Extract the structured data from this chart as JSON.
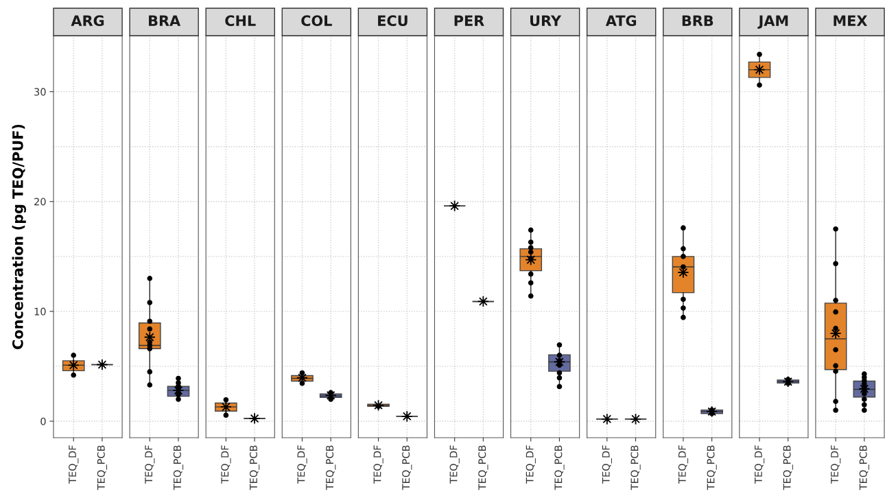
{
  "chart_data": [
    {
      "type": "box",
      "title": "ARG",
      "ylabel": "Concentration (pg TEQ/PUF)",
      "categories": [
        "TEQ_DF",
        "TEQ_PCB"
      ],
      "ylim": [
        -1.5,
        35.1
      ],
      "yticks": [
        0,
        10,
        20,
        30
      ],
      "grid": true,
      "series": [
        {
          "type": "box",
          "colors": [
            "#e3832a",
            "#333333"
          ],
          "boxes": [
            {
              "low": 4.2,
              "q1": 4.6,
              "median": 5.1,
              "q3": 5.5,
              "high": 6.0,
              "mean": 5.1
            },
            {
              "low": 5.15,
              "q1": 5.15,
              "median": 5.15,
              "q3": 5.15,
              "high": 5.15,
              "mean": 5.15
            }
          ]
        },
        {
          "type": "scatter",
          "marker": "circle",
          "color": "#000000",
          "x": [
            "TEQ_DF",
            "TEQ_DF"
          ],
          "values": [
            6.0,
            4.2
          ]
        }
      ]
    },
    {
      "type": "box",
      "title": "BRA",
      "categories": [
        "TEQ_DF",
        "TEQ_PCB"
      ],
      "ylim": [
        -1.5,
        35.1
      ],
      "yticks": [
        0,
        10,
        20,
        30
      ],
      "tick_labels": "x",
      "grid": true,
      "series": [
        {
          "type": "box",
          "colors": [
            "#e3832a",
            "#636b9e"
          ],
          "boxes": [
            {
              "low": 3.3,
              "q1": 6.6,
              "median": 6.9,
              "q3": 8.95,
              "high": 13.0,
              "mean": 7.65
            },
            {
              "low": 2.0,
              "q1": 2.27,
              "median": 2.8,
              "q3": 3.17,
              "high": 3.9,
              "mean": 2.8
            }
          ]
        },
        {
          "type": "scatter",
          "marker": "circle",
          "color": "#000000",
          "x": [
            "TEQ_DF",
            "TEQ_DF",
            "TEQ_DF",
            "TEQ_DF",
            "TEQ_DF",
            "TEQ_DF",
            "TEQ_DF",
            "TEQ_DF",
            "TEQ_DF",
            "TEQ_PCB",
            "TEQ_PCB",
            "TEQ_PCB",
            "TEQ_PCB",
            "TEQ_PCB",
            "TEQ_PCB",
            "TEQ_PCB"
          ],
          "values": [
            13.0,
            10.8,
            9.1,
            8.4,
            7.2,
            6.9,
            6.6,
            4.5,
            3.3,
            3.9,
            3.5,
            3.2,
            3.0,
            2.6,
            2.4,
            2.0
          ]
        }
      ]
    },
    {
      "type": "box",
      "title": "CHL",
      "categories": [
        "TEQ_DF",
        "TEQ_PCB"
      ],
      "ylim": [
        -1.5,
        35.1
      ],
      "yticks": [
        0,
        10,
        20,
        30
      ],
      "tick_labels": "x",
      "grid": true,
      "series": [
        {
          "type": "box",
          "colors": [
            "#e3832a",
            "#333333"
          ],
          "boxes": [
            {
              "low": 0.55,
              "q1": 0.92,
              "median": 1.3,
              "q3": 1.65,
              "high": 1.95,
              "mean": 1.3
            },
            {
              "low": 0.25,
              "q1": 0.25,
              "median": 0.25,
              "q3": 0.25,
              "high": 0.25,
              "mean": 0.25
            }
          ]
        },
        {
          "type": "scatter",
          "marker": "circle",
          "color": "#000000",
          "x": [
            "TEQ_DF",
            "TEQ_DF"
          ],
          "values": [
            1.95,
            0.55
          ]
        }
      ]
    },
    {
      "type": "box",
      "title": "COL",
      "categories": [
        "TEQ_DF",
        "TEQ_PCB"
      ],
      "ylim": [
        -1.5,
        35.1
      ],
      "yticks": [
        0,
        10,
        20,
        30
      ],
      "tick_labels": "x",
      "grid": true,
      "series": [
        {
          "type": "box",
          "colors": [
            "#e3832a",
            "#636b9e"
          ],
          "boxes": [
            {
              "low": 3.45,
              "q1": 3.65,
              "median": 3.9,
              "q3": 4.15,
              "high": 4.4,
              "mean": 3.95
            },
            {
              "low": 2.0,
              "q1": 2.17,
              "median": 2.3,
              "q3": 2.48,
              "high": 2.6,
              "mean": 2.35
            }
          ]
        },
        {
          "type": "scatter",
          "marker": "circle",
          "color": "#000000",
          "x": [
            "TEQ_DF",
            "TEQ_DF",
            "TEQ_PCB",
            "TEQ_PCB"
          ],
          "values": [
            4.4,
            3.45,
            2.6,
            2.0
          ]
        }
      ]
    },
    {
      "type": "box",
      "title": "ECU",
      "categories": [
        "TEQ_DF",
        "TEQ_PCB"
      ],
      "ylim": [
        -1.5,
        35.1
      ],
      "yticks": [
        0,
        10,
        20,
        30
      ],
      "tick_labels": "x",
      "grid": true,
      "series": [
        {
          "type": "box",
          "colors": [
            "#e3832a",
            "#333333"
          ],
          "boxes": [
            {
              "low": 1.35,
              "q1": 1.35,
              "median": 1.45,
              "q3": 1.55,
              "high": 1.55,
              "mean": 1.45
            },
            {
              "low": 0.45,
              "q1": 0.45,
              "median": 0.45,
              "q3": 0.45,
              "high": 0.45,
              "mean": 0.45
            }
          ]
        },
        {
          "type": "scatter",
          "marker": "circle",
          "color": "#000000",
          "x": [
            "TEQ_DF"
          ],
          "values": [
            1.35
          ]
        }
      ]
    },
    {
      "type": "box",
      "title": "PER",
      "categories": [
        "TEQ_DF",
        "TEQ_PCB"
      ],
      "ylim": [
        -1.5,
        35.1
      ],
      "yticks": [
        0,
        10,
        20,
        30
      ],
      "tick_labels": "x",
      "grid": true,
      "series": [
        {
          "type": "box",
          "colors": [
            "#333333",
            "#333333"
          ],
          "boxes": [
            {
              "low": 19.6,
              "q1": 19.6,
              "median": 19.6,
              "q3": 19.6,
              "high": 19.6,
              "mean": 19.6
            },
            {
              "low": 10.9,
              "q1": 10.9,
              "median": 10.9,
              "q3": 10.9,
              "high": 10.9,
              "mean": 10.9
            }
          ]
        }
      ]
    },
    {
      "type": "box",
      "title": "URY",
      "categories": [
        "TEQ_DF",
        "TEQ_PCB"
      ],
      "ylim": [
        -1.5,
        35.1
      ],
      "yticks": [
        0,
        10,
        20,
        30
      ],
      "tick_labels": "x",
      "grid": true,
      "series": [
        {
          "type": "box",
          "colors": [
            "#e3832a",
            "#636b9e"
          ],
          "boxes": [
            {
              "low": 11.4,
              "q1": 13.7,
              "median": 15.0,
              "q3": 15.7,
              "high": 17.4,
              "mean": 14.7
            },
            {
              "low": 3.15,
              "q1": 4.55,
              "median": 5.4,
              "q3": 6.05,
              "high": 6.95,
              "mean": 5.4
            }
          ]
        },
        {
          "type": "scatter",
          "marker": "circle",
          "color": "#000000",
          "x": [
            "TEQ_DF",
            "TEQ_DF",
            "TEQ_DF",
            "TEQ_DF",
            "TEQ_DF",
            "TEQ_DF",
            "TEQ_DF",
            "TEQ_DF",
            "TEQ_PCB",
            "TEQ_PCB",
            "TEQ_PCB",
            "TEQ_PCB",
            "TEQ_PCB",
            "TEQ_PCB",
            "TEQ_PCB"
          ],
          "values": [
            17.4,
            16.3,
            15.8,
            15.4,
            14.8,
            13.4,
            12.6,
            11.4,
            6.95,
            6.0,
            5.5,
            5.1,
            4.4,
            3.95,
            3.15
          ]
        }
      ]
    },
    {
      "type": "box",
      "title": "ATG",
      "categories": [
        "TEQ_DF",
        "TEQ_PCB"
      ],
      "ylim": [
        -1.5,
        35.1
      ],
      "yticks": [
        0,
        10,
        20,
        30
      ],
      "tick_labels": "x",
      "grid": true,
      "series": [
        {
          "type": "box",
          "colors": [
            "#333333",
            "#333333"
          ],
          "boxes": [
            {
              "low": 0.2,
              "q1": 0.2,
              "median": 0.2,
              "q3": 0.2,
              "high": 0.2,
              "mean": 0.2
            },
            {
              "low": 0.2,
              "q1": 0.2,
              "median": 0.2,
              "q3": 0.2,
              "high": 0.2,
              "mean": 0.2
            }
          ]
        }
      ]
    },
    {
      "type": "box",
      "title": "BRB",
      "categories": [
        "TEQ_DF",
        "TEQ_PCB"
      ],
      "ylim": [
        -1.5,
        35.1
      ],
      "yticks": [
        0,
        10,
        20,
        30
      ],
      "tick_labels": "x",
      "grid": true,
      "series": [
        {
          "type": "box",
          "colors": [
            "#e3832a",
            "#636b9e"
          ],
          "boxes": [
            {
              "low": 9.45,
              "q1": 11.7,
              "median": 14.05,
              "q3": 15.0,
              "high": 17.6,
              "mean": 13.55
            },
            {
              "low": 0.7,
              "q1": 0.7,
              "median": 0.88,
              "q3": 1.02,
              "high": 1.02,
              "mean": 0.88
            }
          ]
        },
        {
          "type": "scatter",
          "marker": "circle",
          "color": "#000000",
          "x": [
            "TEQ_DF",
            "TEQ_DF",
            "TEQ_DF",
            "TEQ_DF",
            "TEQ_DF",
            "TEQ_DF",
            "TEQ_DF",
            "TEQ_PCB",
            "TEQ_PCB"
          ],
          "values": [
            17.6,
            15.7,
            15.0,
            14.05,
            11.1,
            10.3,
            9.45,
            1.02,
            0.7
          ]
        }
      ]
    },
    {
      "type": "box",
      "title": "JAM",
      "categories": [
        "TEQ_DF",
        "TEQ_PCB"
      ],
      "ylim": [
        -1.5,
        35.1
      ],
      "yticks": [
        0,
        10,
        20,
        30
      ],
      "tick_labels": "x",
      "grid": true,
      "series": [
        {
          "type": "box",
          "colors": [
            "#e3832a",
            "#636b9e"
          ],
          "boxes": [
            {
              "low": 30.6,
              "q1": 31.3,
              "median": 32.0,
              "q3": 32.7,
              "high": 33.4,
              "mean": 32.0
            },
            {
              "low": 3.45,
              "q1": 3.47,
              "median": 3.6,
              "q3": 3.75,
              "high": 3.8,
              "mean": 3.6
            }
          ]
        },
        {
          "type": "scatter",
          "marker": "circle",
          "color": "#000000",
          "x": [
            "TEQ_DF",
            "TEQ_DF",
            "TEQ_PCB",
            "TEQ_PCB"
          ],
          "values": [
            33.4,
            30.6,
            3.8,
            3.45
          ]
        }
      ]
    },
    {
      "type": "box",
      "title": "MEX",
      "categories": [
        "TEQ_DF",
        "TEQ_PCB"
      ],
      "ylim": [
        -1.5,
        35.1
      ],
      "yticks": [
        0,
        10,
        20,
        30
      ],
      "tick_labels": "x",
      "grid": true,
      "series": [
        {
          "type": "box",
          "colors": [
            "#e3832a",
            "#636b9e"
          ],
          "boxes": [
            {
              "low": 1.0,
              "q1": 4.7,
              "median": 7.5,
              "q3": 10.75,
              "high": 17.5,
              "mean": 8.0
            },
            {
              "low": 1.0,
              "q1": 2.2,
              "median": 2.9,
              "q3": 3.65,
              "high": 4.3,
              "mean": 2.95
            }
          ]
        },
        {
          "type": "scatter",
          "marker": "circle",
          "color": "#000000",
          "x": [
            "TEQ_DF",
            "TEQ_DF",
            "TEQ_DF",
            "TEQ_DF",
            "TEQ_DF",
            "TEQ_DF",
            "TEQ_DF",
            "TEQ_DF",
            "TEQ_DF",
            "TEQ_DF",
            "TEQ_PCB",
            "TEQ_PCB",
            "TEQ_PCB",
            "TEQ_PCB",
            "TEQ_PCB",
            "TEQ_PCB",
            "TEQ_PCB",
            "TEQ_PCB",
            "TEQ_PCB",
            "TEQ_PCB"
          ],
          "values": [
            17.5,
            14.35,
            11.0,
            9.95,
            8.45,
            6.5,
            5.05,
            4.55,
            1.8,
            1.0,
            4.3,
            4.0,
            3.7,
            3.4,
            3.1,
            2.8,
            2.5,
            2.0,
            1.5,
            1.0
          ]
        }
      ]
    }
  ]
}
